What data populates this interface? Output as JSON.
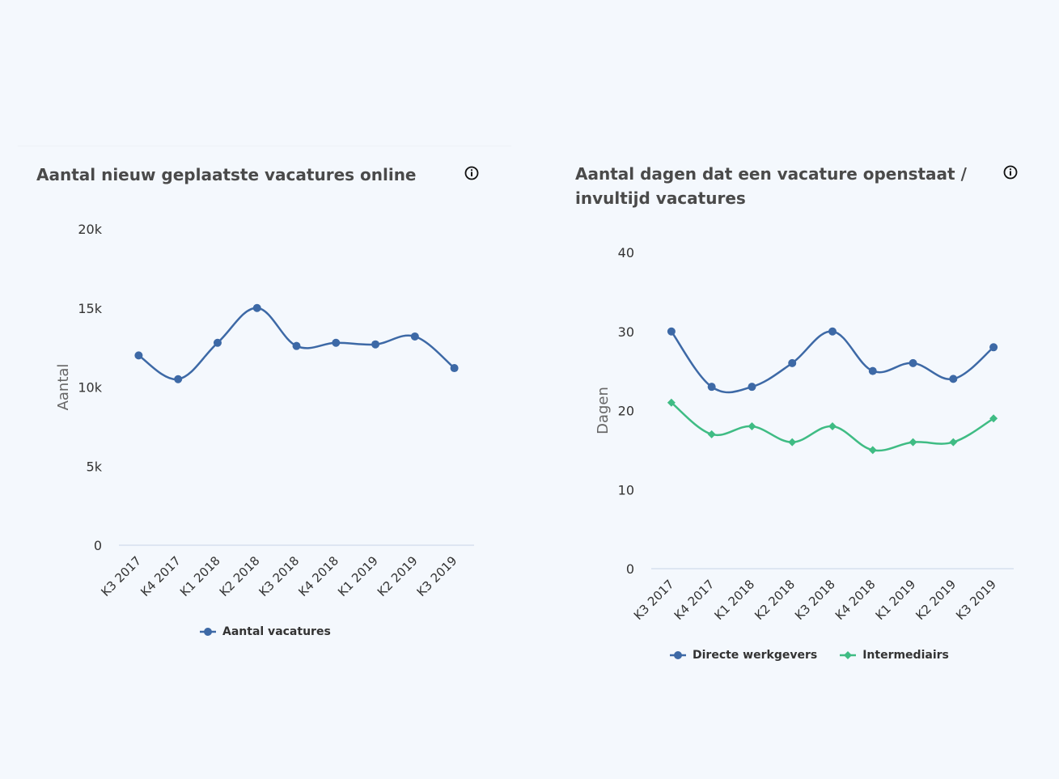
{
  "colors": {
    "blue": "#3d69a6",
    "green": "#3fbc84",
    "axis": "#c8d3e6"
  },
  "icons": {
    "info": "info-icon"
  },
  "charts": [
    {
      "title": "Aantal nieuw geplaatste vacatures online",
      "ylabel": "Aantal",
      "yticks": [
        "0",
        "5k",
        "10k",
        "15k",
        "20k"
      ],
      "legend": [
        "Aantal vacatures"
      ]
    },
    {
      "title": "Aantal dagen dat een vacature openstaat / invultijd vacatures",
      "ylabel": "Dagen",
      "yticks": [
        "0",
        "10",
        "20",
        "30",
        "40"
      ],
      "legend": [
        "Directe werkgevers",
        "Intermediairs"
      ]
    }
  ],
  "chart_data": [
    {
      "type": "line",
      "title": "Aantal nieuw geplaatste vacatures online",
      "xlabel": "",
      "ylabel": "Aantal",
      "ylim": [
        0,
        20000
      ],
      "grid": false,
      "legend_position": "bottom",
      "categories": [
        "K3 2017",
        "K4 2017",
        "K1 2018",
        "K2 2018",
        "K3 2018",
        "K4 2018",
        "K1 2019",
        "K2 2019",
        "K3 2019"
      ],
      "series": [
        {
          "name": "Aantal vacatures",
          "values": [
            12000,
            10500,
            12800,
            15000,
            12600,
            12800,
            12700,
            13200,
            11200
          ]
        }
      ]
    },
    {
      "type": "line",
      "title": "Aantal dagen dat een vacature openstaat / invultijd vacatures",
      "xlabel": "",
      "ylabel": "Dagen",
      "ylim": [
        0,
        40
      ],
      "grid": false,
      "legend_position": "bottom",
      "categories": [
        "K3 2017",
        "K4 2017",
        "K1 2018",
        "K2 2018",
        "K3 2018",
        "K4 2018",
        "K1 2019",
        "K2 2019",
        "K3 2019"
      ],
      "series": [
        {
          "name": "Directe werkgevers",
          "values": [
            30,
            23,
            23,
            26,
            30,
            25,
            26,
            24,
            28
          ]
        },
        {
          "name": "Intermediairs",
          "values": [
            21,
            17,
            18,
            16,
            18,
            15,
            16,
            16,
            19
          ]
        }
      ]
    }
  ]
}
